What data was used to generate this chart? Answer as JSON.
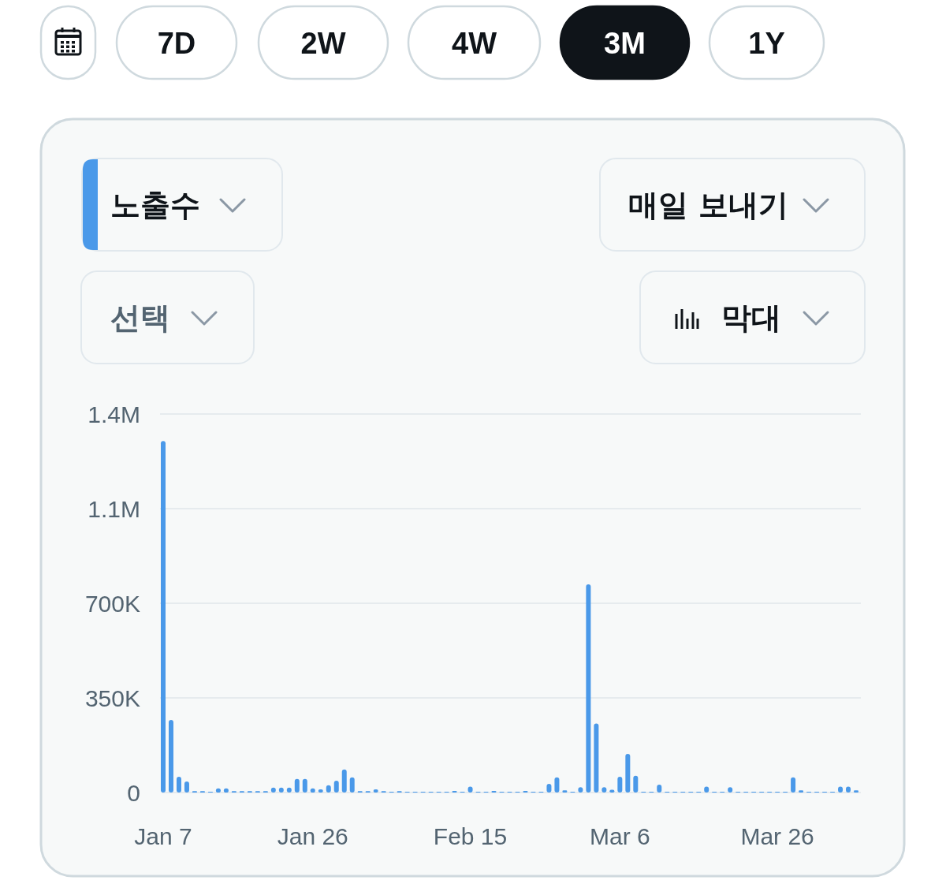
{
  "chart_data": {
    "type": "bar",
    "color": "#4a99e9",
    "categories": [
      "Jan 7",
      null,
      null,
      null,
      null,
      null,
      null,
      null,
      null,
      null,
      null,
      null,
      null,
      null,
      null,
      null,
      null,
      null,
      null,
      "Jan 26",
      null,
      null,
      null,
      null,
      null,
      null,
      null,
      null,
      null,
      null,
      null,
      null,
      null,
      null,
      null,
      null,
      null,
      null,
      null,
      "Feb 15",
      null,
      null,
      null,
      null,
      null,
      null,
      null,
      null,
      null,
      null,
      null,
      null,
      null,
      null,
      null,
      null,
      null,
      null,
      "Mar 6",
      null,
      null,
      null,
      null,
      null,
      null,
      null,
      null,
      null,
      null,
      null,
      null,
      null,
      null,
      null,
      null,
      null,
      null,
      null,
      "Mar 26",
      null,
      null,
      null,
      null,
      null,
      null,
      null,
      null,
      null,
      null
    ],
    "values": [
      1300000,
      268000,
      58000,
      41000,
      5000,
      5000,
      3000,
      15000,
      15000,
      5000,
      5000,
      5000,
      5000,
      5000,
      18000,
      18000,
      18000,
      50000,
      50000,
      15000,
      12000,
      27000,
      44000,
      85000,
      56000,
      5000,
      5000,
      12000,
      5000,
      3000,
      5000,
      3000,
      3000,
      3000,
      3000,
      3000,
      3000,
      6000,
      3000,
      22000,
      3000,
      3000,
      6000,
      3000,
      3000,
      3000,
      6000,
      3000,
      3000,
      32000,
      56000,
      8000,
      3000,
      20000,
      770000,
      255000,
      20000,
      10000,
      58000,
      143000,
      62000,
      3000,
      3000,
      29000,
      3000,
      3000,
      3000,
      3000,
      3000,
      22000,
      3000,
      3000,
      20000,
      3000,
      3000,
      3000,
      3000,
      3000,
      3000,
      3000,
      56000,
      8000,
      3000,
      3000,
      3000,
      3000,
      22000,
      22000,
      8000
    ],
    "ylim": [
      0,
      1400000
    ],
    "yticks": [
      0,
      {
        "value": 350000,
        "label": "350K"
      },
      {
        "value": 700000,
        "label": "700K"
      },
      {
        "value": 1050000,
        "label": "1.1M"
      },
      {
        "value": 1400000,
        "label": "1.4M"
      }
    ],
    "grid": "y",
    "annotations": [
      "7D",
      "2W",
      "4W",
      "3M",
      "1Y",
      "노출수",
      "매일 보내기",
      "선택",
      "막대"
    ]
  }
}
